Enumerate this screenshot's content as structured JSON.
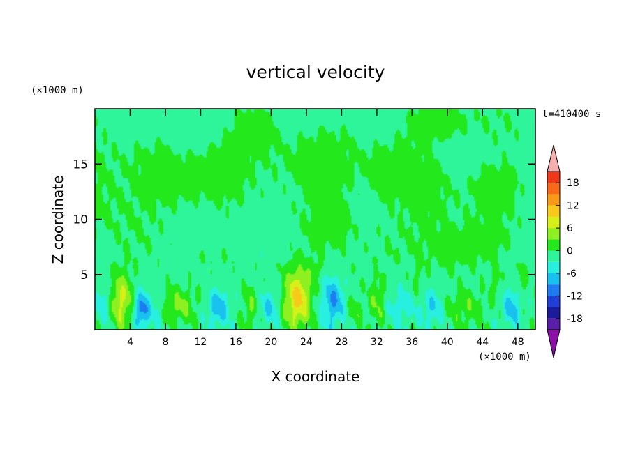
{
  "chart_data": {
    "type": "heatmap",
    "title": "vertical velocity",
    "xlabel": "X coordinate",
    "ylabel": "Z coordinate",
    "x_unit": "(×1000 m)",
    "y_unit": "(×1000 m)",
    "time_label": "t=410400 s",
    "xlim": [
      0,
      50
    ],
    "ylim": [
      0,
      20
    ],
    "x_ticks": [
      4,
      8,
      12,
      16,
      20,
      24,
      28,
      32,
      36,
      40,
      44,
      48
    ],
    "x_tick_labels": [
      "4",
      "8",
      "12",
      "16",
      "20",
      "24",
      "28",
      "32",
      "36",
      "40",
      "44",
      "48"
    ],
    "y_ticks": [
      5,
      10,
      15
    ],
    "y_tick_labels": [
      "5",
      "10",
      "15"
    ],
    "colorbar": {
      "levels": [
        -21,
        -18,
        -15,
        -12,
        -9,
        -6,
        -3,
        0,
        3,
        6,
        9,
        12,
        15,
        18,
        21
      ],
      "tick_values": [
        18,
        12,
        6,
        0,
        -6,
        -12,
        -18
      ],
      "tick_labels": [
        "18",
        "12",
        "6",
        "0",
        "-6",
        "-12",
        "-18"
      ],
      "colors": [
        "#5a1fa8",
        "#1a1a9a",
        "#1f3fd6",
        "#1c7cf0",
        "#19c2ee",
        "#28f0e0",
        "#2ef59a",
        "#22e81c",
        "#8ef020",
        "#d8f018",
        "#f8c81a",
        "#f89a18",
        "#f86a18",
        "#f03818",
        "#e01e1e"
      ],
      "under_color": "#8a10a8",
      "over_color": "#f7aeae"
    },
    "features": [
      {
        "x": 3.0,
        "z": 2.6,
        "w": 8,
        "sx": 1.3,
        "sz": 2.6
      },
      {
        "x": 5.3,
        "z": 1.8,
        "w": -10,
        "sx": 0.9,
        "sz": 1.6
      },
      {
        "x": 1.0,
        "z": 2.5,
        "w": -4,
        "sx": 0.9,
        "sz": 1.8
      },
      {
        "x": 9.5,
        "z": 2.2,
        "w": 5,
        "sx": 1.9,
        "sz": 1.5
      },
      {
        "x": 14.0,
        "z": 2.0,
        "w": -7,
        "sx": 1.2,
        "sz": 1.6
      },
      {
        "x": 17.6,
        "z": 2.0,
        "w": 4,
        "sx": 0.8,
        "sz": 1.9
      },
      {
        "x": 19.8,
        "z": 2.0,
        "w": -5,
        "sx": 1.0,
        "sz": 1.5
      },
      {
        "x": 23.0,
        "z": 2.8,
        "w": 11,
        "sx": 1.5,
        "sz": 2.8
      },
      {
        "x": 27.0,
        "z": 2.6,
        "w": -8,
        "sx": 1.3,
        "sz": 2.3
      },
      {
        "x": 29.5,
        "z": 1.8,
        "w": 3,
        "sx": 0.9,
        "sz": 1.4
      },
      {
        "x": 32.0,
        "z": 2.5,
        "w": 4,
        "sx": 0.9,
        "sz": 2.2
      },
      {
        "x": 34.8,
        "z": 2.0,
        "w": -4,
        "sx": 1.4,
        "sz": 1.6
      },
      {
        "x": 38.3,
        "z": 2.0,
        "w": -5,
        "sx": 1.3,
        "sz": 1.6
      },
      {
        "x": 42.0,
        "z": 2.0,
        "w": 3.5,
        "sx": 2.4,
        "sz": 1.6
      },
      {
        "x": 47.3,
        "z": 2.0,
        "w": -6,
        "sx": 1.0,
        "sz": 1.8
      },
      {
        "x": 45.5,
        "z": 4.2,
        "w": 3,
        "sx": 0.5,
        "sz": 1.2
      },
      {
        "x": 48.5,
        "z": 4.5,
        "w": 3,
        "sx": 0.5,
        "sz": 1.5
      },
      {
        "x": 25.0,
        "z": 5.5,
        "w": 2,
        "sx": 0.8,
        "sz": 1.0
      },
      {
        "x": 7.2,
        "z": 2.0,
        "w": -3,
        "sx": 0.8,
        "sz": 1.5
      },
      {
        "x": 36.5,
        "z": 4.5,
        "w": 2,
        "sx": 0.6,
        "sz": 1.5
      }
    ],
    "upper_positive_regions": [
      {
        "x": 0.0,
        "z": 13.0,
        "sx": 5.0,
        "sz": 4.0
      },
      {
        "x": 9.0,
        "z": 13.0,
        "sx": 4.0,
        "sz": 3.0
      },
      {
        "x": 14.0,
        "z": 15.0,
        "sx": 2.5,
        "sz": 3.0
      },
      {
        "x": 18.0,
        "z": 17.5,
        "sx": 2.5,
        "sz": 2.0
      },
      {
        "x": 23.0,
        "z": 15.0,
        "sx": 4.5,
        "sz": 2.5
      },
      {
        "x": 27.0,
        "z": 10.5,
        "sx": 2.5,
        "sz": 5.0
      },
      {
        "x": 33.0,
        "z": 14.0,
        "sx": 3.5,
        "sz": 3.0
      },
      {
        "x": 38.0,
        "z": 11.0,
        "sx": 3.0,
        "sz": 4.0
      },
      {
        "x": 39.0,
        "z": 18.5,
        "sx": 5.0,
        "sz": 2.0
      },
      {
        "x": 46.0,
        "z": 13.0,
        "sx": 3.0,
        "sz": 2.5
      },
      {
        "x": 40.5,
        "z": 7.5,
        "sx": 3.0,
        "sz": 2.0
      },
      {
        "x": 45.0,
        "z": 8.0,
        "sx": 3.0,
        "sz": 2.0
      }
    ]
  }
}
